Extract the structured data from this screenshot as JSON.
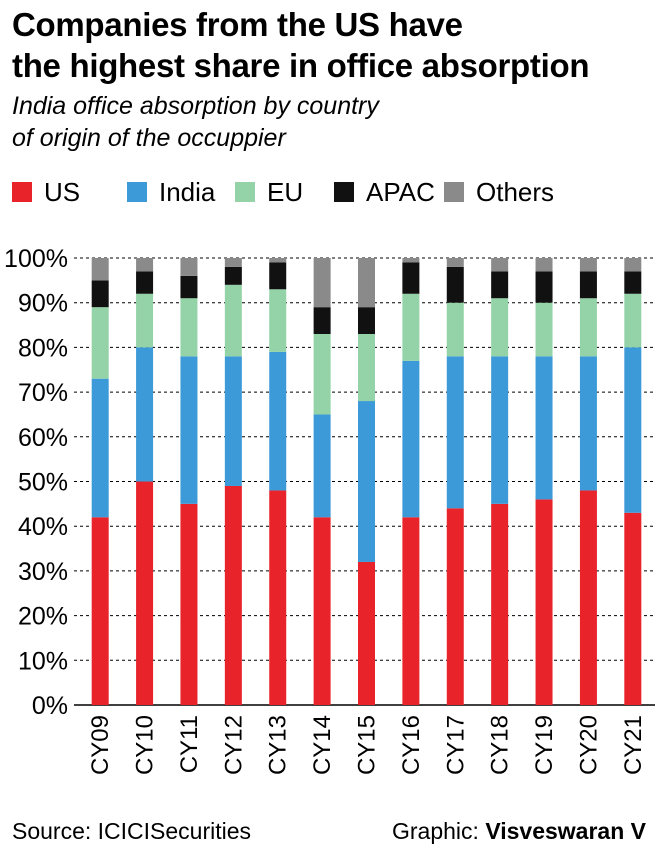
{
  "header": {
    "title_line1": "Companies from the US have",
    "title_line2": "the highest share in office absorption",
    "subtitle_line1": "India office absorption by country",
    "subtitle_line2": "of origin of the occuppier"
  },
  "footer": {
    "source": "Source: ICICISecurities",
    "credit_prefix": "Graphic: ",
    "credit_name": "Visveswaran V"
  },
  "chart_data": {
    "type": "bar",
    "stacked": true,
    "categories": [
      "CY09",
      "CY10",
      "CY11",
      "CY12",
      "CY13",
      "CY14",
      "CY15",
      "CY16",
      "CY17",
      "CY18",
      "CY19",
      "CY20",
      "CY21"
    ],
    "series": [
      {
        "name": "US",
        "color": "#e8232a",
        "values": [
          42,
          50,
          45,
          49,
          48,
          42,
          32,
          42,
          44,
          45,
          46,
          48,
          43
        ]
      },
      {
        "name": "India",
        "color": "#3d9ad8",
        "values": [
          31,
          30,
          33,
          29,
          31,
          23,
          36,
          35,
          34,
          33,
          32,
          30,
          37
        ]
      },
      {
        "name": "EU",
        "color": "#93d3a7",
        "values": [
          16,
          12,
          13,
          16,
          14,
          18,
          15,
          15,
          12,
          13,
          12,
          13,
          12
        ]
      },
      {
        "name": "APAC",
        "color": "#111111",
        "values": [
          6,
          5,
          5,
          4,
          6,
          6,
          6,
          7,
          8,
          6,
          7,
          6,
          5
        ]
      },
      {
        "name": "Others",
        "color": "#8a8a8a",
        "values": [
          5,
          3,
          4,
          2,
          1,
          11,
          11,
          1,
          2,
          3,
          3,
          3,
          3
        ]
      }
    ],
    "ylim": [
      0,
      100
    ],
    "yticks": [
      "0%",
      "10%",
      "20%",
      "30%",
      "40%",
      "50%",
      "60%",
      "70%",
      "80%",
      "90%",
      "100%"
    ],
    "grid": true,
    "legend_position": "top-left"
  }
}
